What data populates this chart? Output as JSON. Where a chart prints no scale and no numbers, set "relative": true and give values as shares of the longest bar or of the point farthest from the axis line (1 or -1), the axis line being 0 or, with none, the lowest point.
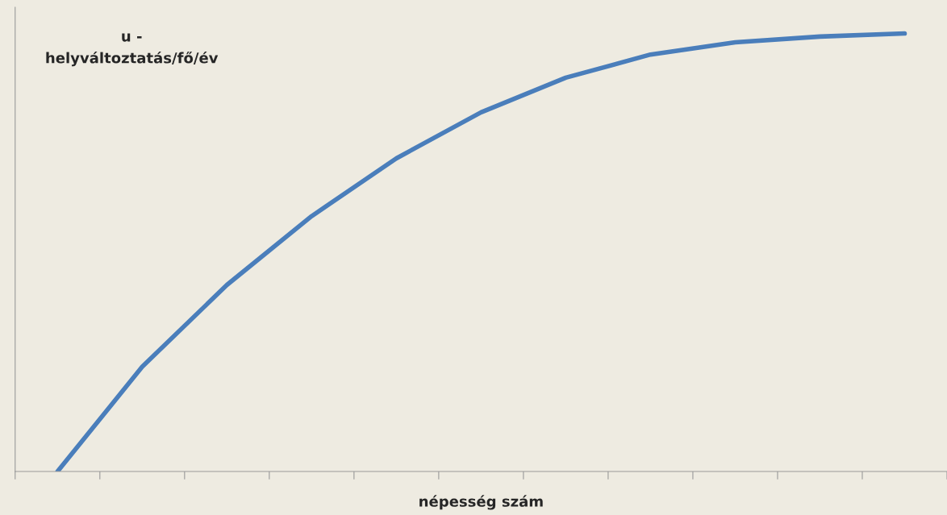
{
  "chart_data": {
    "type": "line",
    "relative": true,
    "xlabel": "népesség szám",
    "ylabel": "u -\nhelyváltoztatás/fő/év",
    "categories": [
      null,
      null,
      null,
      null,
      null,
      null,
      null,
      null,
      null,
      null,
      null
    ],
    "series": [
      {
        "color": "#4a7ebb",
        "values": [
          0,
          0.239,
          0.426,
          0.583,
          0.715,
          0.82,
          0.899,
          0.952,
          0.98,
          0.993,
          1
        ]
      }
    ],
    "grid": false,
    "tick_labels": false,
    "marker": "none",
    "line_style": "solid"
  }
}
